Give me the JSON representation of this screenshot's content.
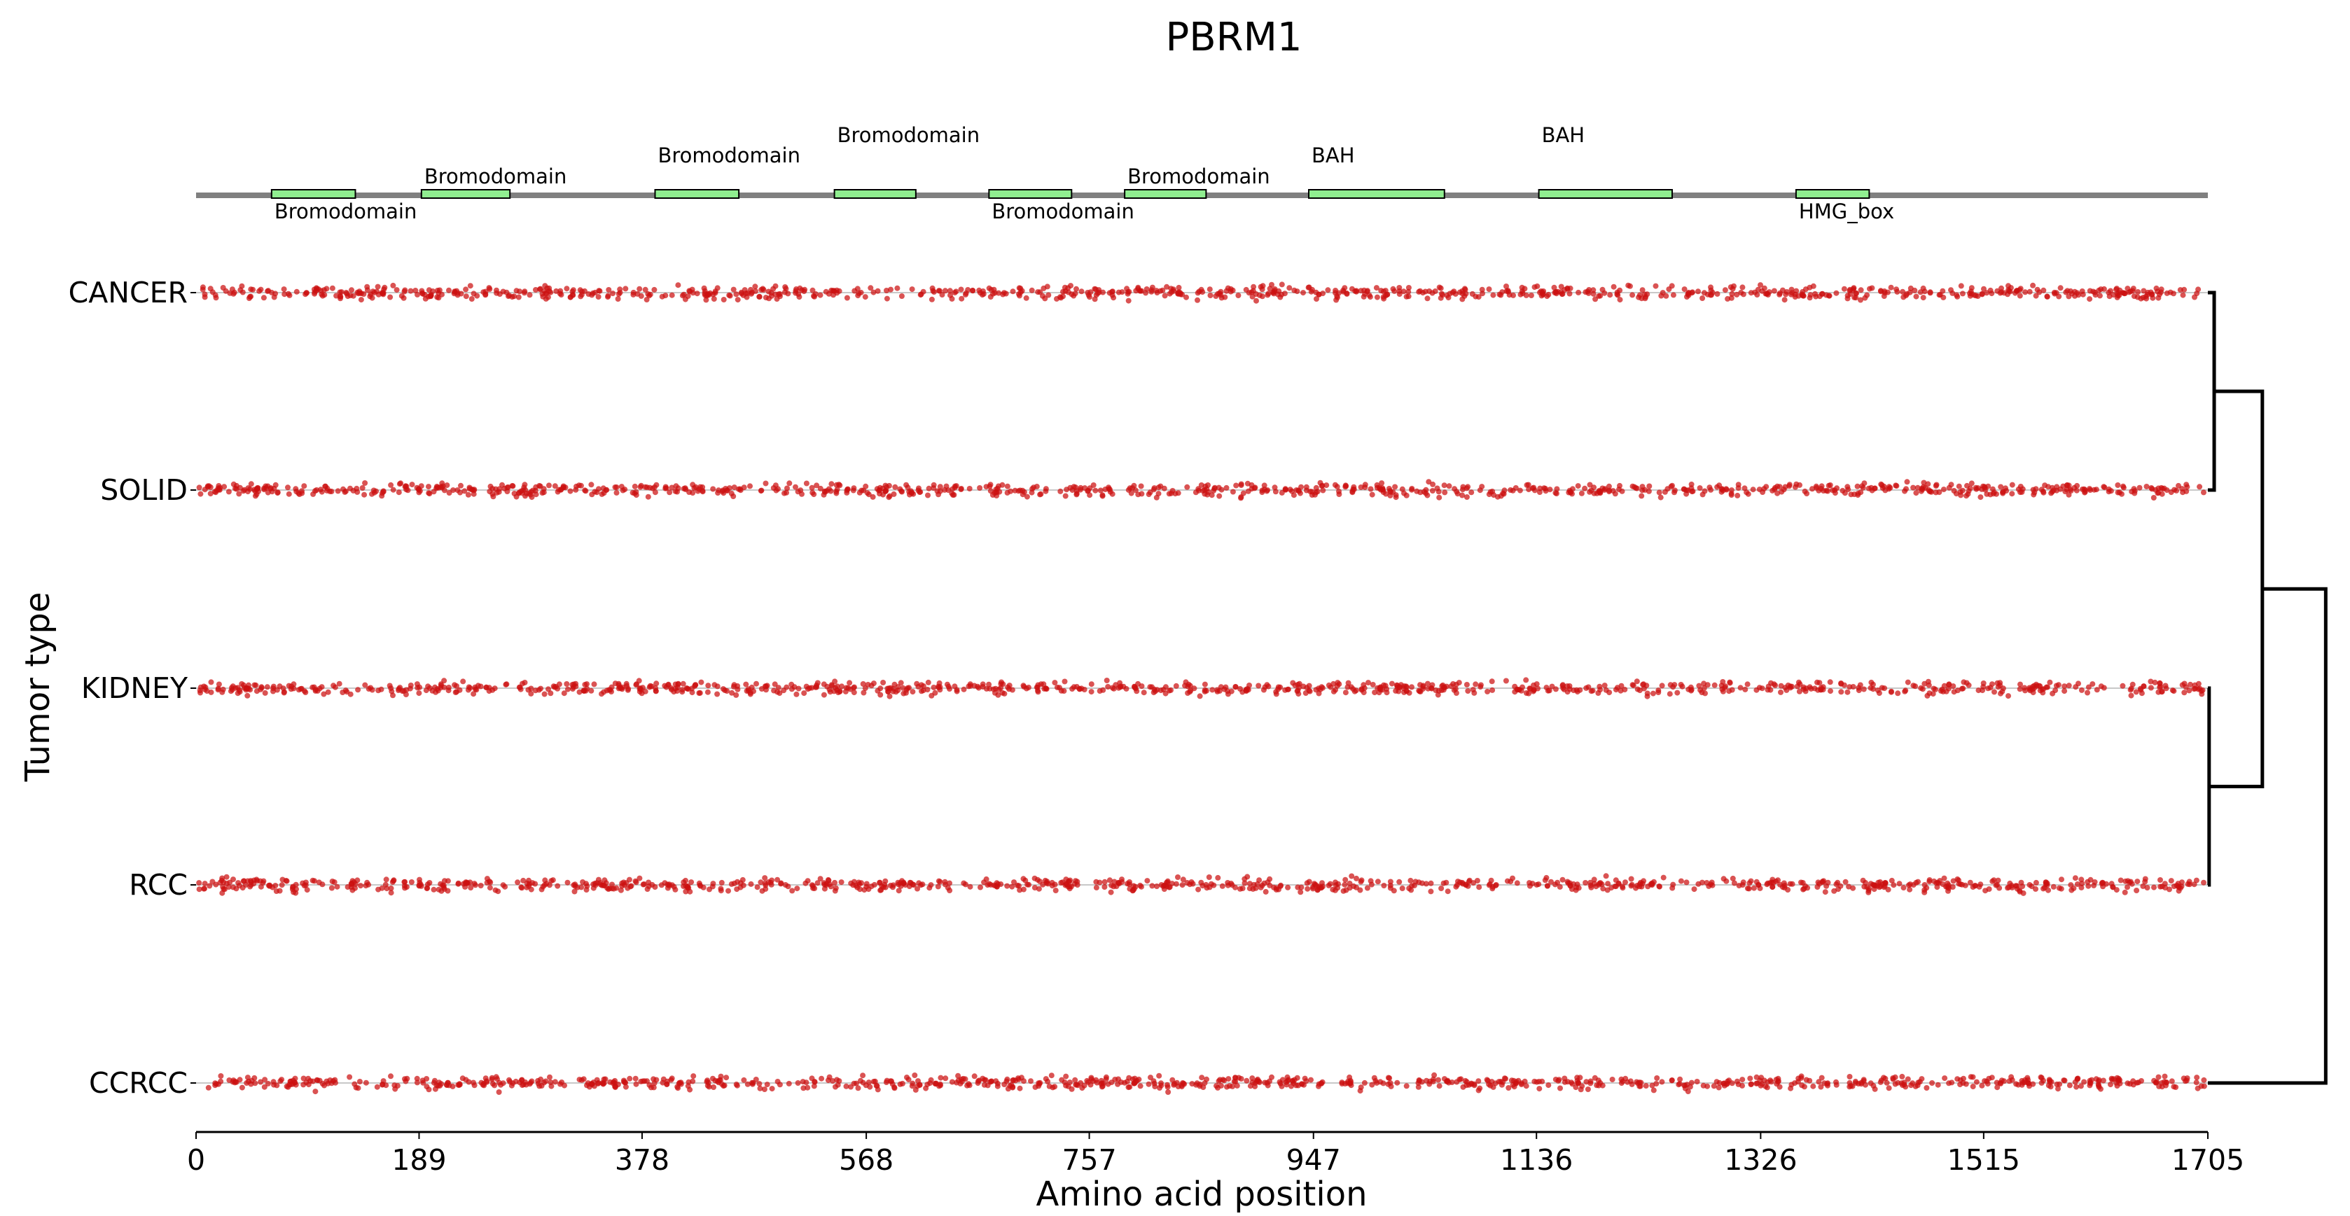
{
  "chart_data": {
    "type": "scatter",
    "title": "PBRM1",
    "xlabel": "Amino acid position",
    "ylabel": "Tumor type",
    "xlim": [
      0,
      1705
    ],
    "x_ticks": [
      "0",
      "189",
      "378",
      "568",
      "757",
      "947",
      "1136",
      "1326",
      "1515",
      "1705"
    ],
    "x_tick_values": [
      0,
      189,
      378,
      568,
      757,
      947,
      1136,
      1326,
      1515,
      1705
    ],
    "rows": [
      "CANCER",
      "SOLID",
      "KIDNEY",
      "RCC",
      "CCRCC"
    ],
    "protein_length": 1705,
    "domains": [
      {
        "name": "Bromodomain",
        "start": 64,
        "end": 135,
        "label_pos": "below"
      },
      {
        "name": "Bromodomain",
        "start": 191,
        "end": 266,
        "label_pos": "above"
      },
      {
        "name": "Bromodomain",
        "start": 389,
        "end": 460,
        "label_pos": "above"
      },
      {
        "name": "Bromodomain",
        "start": 541,
        "end": 610,
        "label_pos": "above"
      },
      {
        "name": "Bromodomain",
        "start": 672,
        "end": 742,
        "label_pos": "below"
      },
      {
        "name": "Bromodomain",
        "start": 787,
        "end": 856,
        "label_pos": "above"
      },
      {
        "name": "BAH",
        "start": 943,
        "end": 1058,
        "label_pos": "above"
      },
      {
        "name": "BAH",
        "start": 1138,
        "end": 1251,
        "label_pos": "above"
      },
      {
        "name": "HMG_box",
        "start": 1356,
        "end": 1418,
        "label_pos": "below"
      }
    ],
    "point_color": "#cc1111",
    "domain_fill": "#90ee90",
    "backbone_color": "#808080",
    "dendrogram": [
      {
        "join": [
          "CANCER",
          "SOLID"
        ],
        "height": 0.05
      },
      {
        "join": [
          "KIDNEY",
          "RCC"
        ],
        "height": 0.01
      },
      {
        "join": [
          "CANCER+SOLID",
          "KIDNEY+RCC"
        ],
        "height": 0.43
      },
      {
        "join": [
          "CANCER+SOLID+KIDNEY+RCC",
          "CCRCC"
        ],
        "height": 0.93
      }
    ]
  }
}
